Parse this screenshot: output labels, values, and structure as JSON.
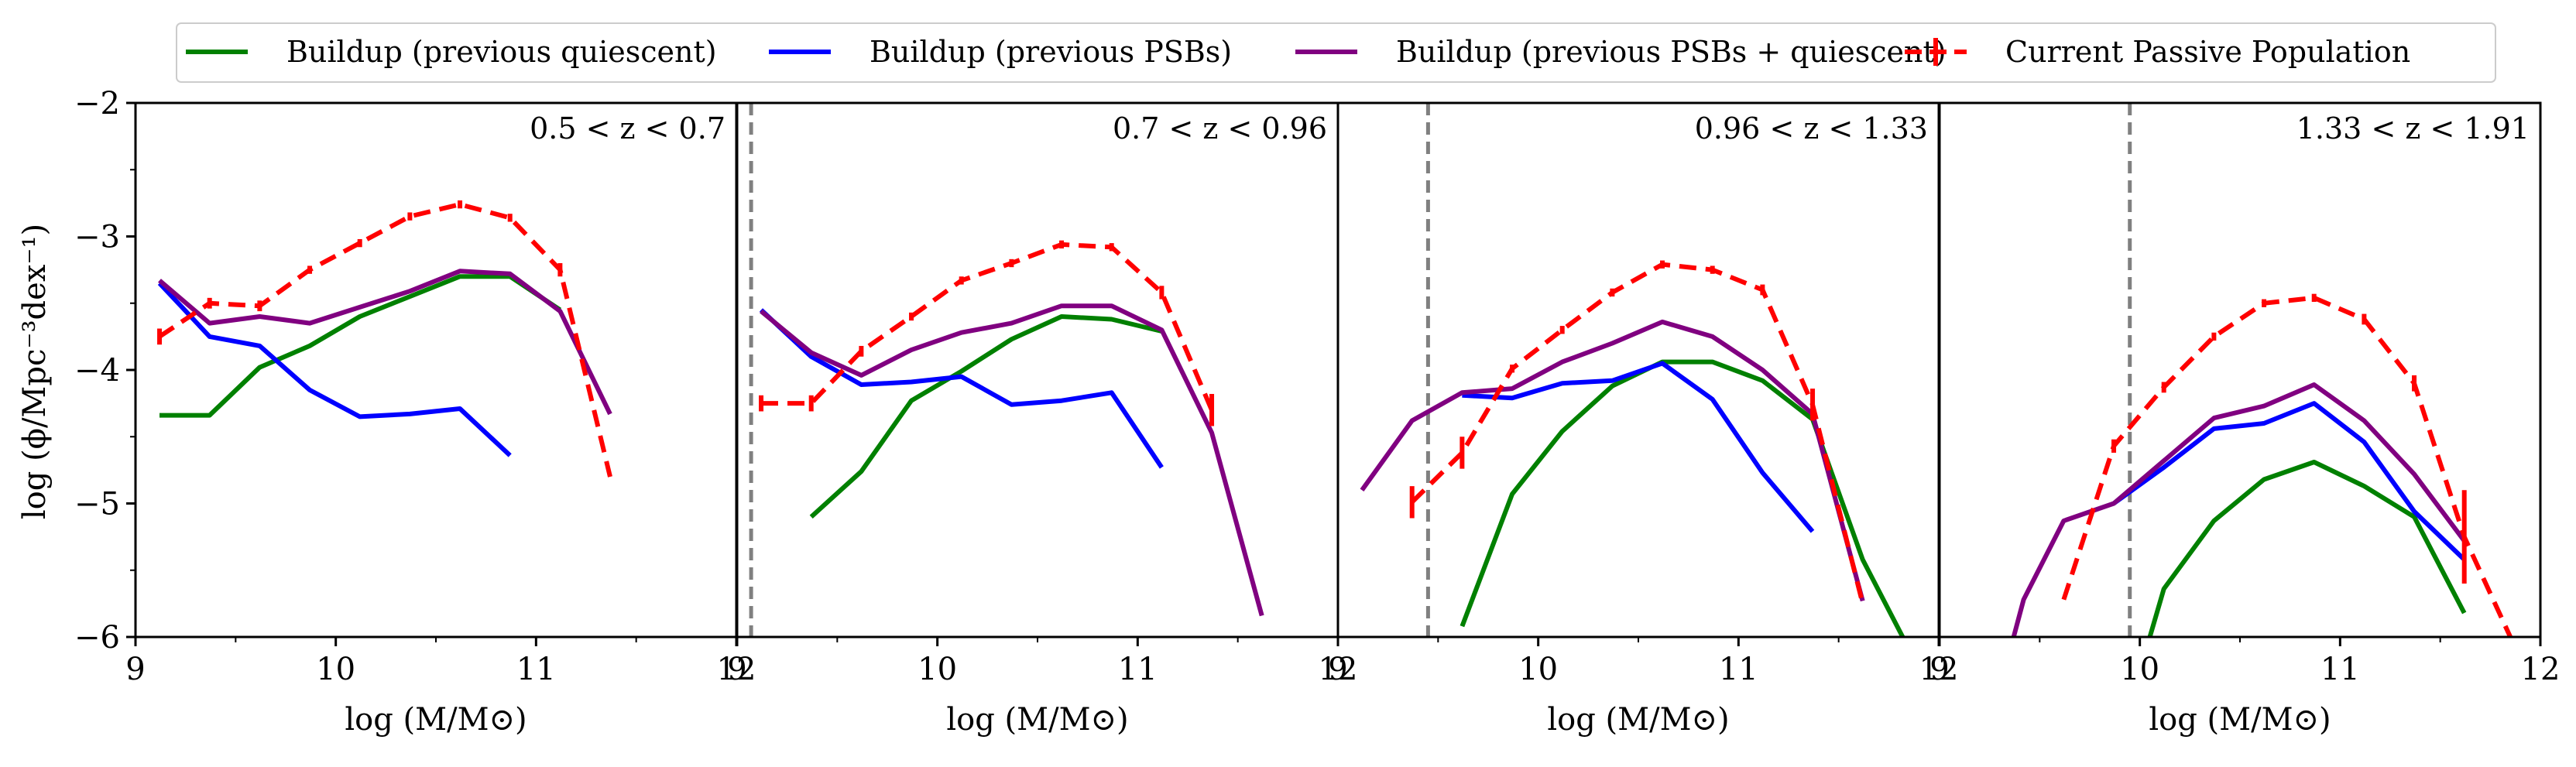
{
  "legend": [
    {
      "key": "quiescent",
      "label": "Buildup (previous quiescent)",
      "color": "#008000",
      "style": "solid"
    },
    {
      "key": "psb",
      "label": "Buildup (previous PSBs)",
      "color": "#0000ff",
      "style": "solid"
    },
    {
      "key": "combined",
      "label": "Buildup (previous PSBs + quiescent)",
      "color": "#800080",
      "style": "solid"
    },
    {
      "key": "passive",
      "label": "Current Passive Population",
      "color": "#ff0000",
      "style": "dashed-errorbar"
    }
  ],
  "y_axis": {
    "label": "log (ϕ/Mpc⁻³dex⁻¹)",
    "ticks": [
      -2,
      -3,
      -4,
      -5,
      -6
    ],
    "tick_labels": [
      "−2",
      "−3",
      "−4",
      "−5",
      "−6"
    ]
  },
  "x_axis": {
    "label": "log (M/M⊙)",
    "ticks": [
      9,
      10,
      11,
      12
    ],
    "tick_labels": [
      "9",
      "10",
      "11",
      "12"
    ]
  },
  "chart_data": [
    {
      "type": "line",
      "title": "0.5 < z < 0.7",
      "xlim": [
        9,
        12
      ],
      "ylim": [
        -6,
        -2
      ],
      "completeness_limit": null,
      "series": [
        {
          "name": "Buildup (previous quiescent)",
          "x": [
            9.12,
            9.37,
            9.62,
            9.87,
            10.12,
            10.37,
            10.62,
            10.87,
            11.12
          ],
          "y": [
            -4.34,
            -4.34,
            -3.98,
            -3.82,
            -3.6,
            -3.45,
            -3.3,
            -3.3,
            -3.55
          ]
        },
        {
          "name": "Buildup (previous PSBs)",
          "x": [
            9.12,
            9.37,
            9.62,
            9.87,
            10.12,
            10.37,
            10.62,
            10.87
          ],
          "y": [
            -3.35,
            -3.75,
            -3.82,
            -4.15,
            -4.35,
            -4.33,
            -4.29,
            -4.64
          ]
        },
        {
          "name": "Buildup (previous PSBs + quiescent)",
          "x": [
            9.12,
            9.37,
            9.62,
            9.87,
            10.12,
            10.37,
            10.62,
            10.87,
            11.12,
            11.37
          ],
          "y": [
            -3.33,
            -3.65,
            -3.6,
            -3.65,
            -3.53,
            -3.41,
            -3.26,
            -3.28,
            -3.56,
            -4.33
          ]
        },
        {
          "name": "Current Passive Population",
          "x": [
            9.12,
            9.37,
            9.62,
            9.87,
            10.12,
            10.37,
            10.62,
            10.87,
            11.12,
            11.37
          ],
          "y": [
            -3.75,
            -3.5,
            -3.52,
            -3.25,
            -3.05,
            -2.85,
            -2.76,
            -2.86,
            -3.25,
            -4.8
          ],
          "err": [
            0.06,
            0.04,
            0.04,
            0.03,
            0.03,
            0.03,
            0.03,
            0.03,
            0.05,
            0.0
          ]
        }
      ]
    },
    {
      "type": "line",
      "title": "0.7 < z < 0.96",
      "xlim": [
        9,
        12
      ],
      "ylim": [
        -6,
        -2
      ],
      "completeness_limit": 9.07,
      "series": [
        {
          "name": "Buildup (previous quiescent)",
          "x": [
            9.37,
            9.62,
            9.87,
            10.12,
            10.37,
            10.62,
            10.87,
            11.12
          ],
          "y": [
            -5.1,
            -4.76,
            -4.23,
            -4.01,
            -3.77,
            -3.6,
            -3.62,
            -3.71
          ]
        },
        {
          "name": "Buildup (previous PSBs)",
          "x": [
            9.12,
            9.37,
            9.62,
            9.87,
            10.12,
            10.37,
            10.62,
            10.87,
            11.12
          ],
          "y": [
            -3.55,
            -3.9,
            -4.11,
            -4.09,
            -4.05,
            -4.26,
            -4.23,
            -4.17,
            -4.73
          ]
        },
        {
          "name": "Buildup (previous PSBs + quiescent)",
          "x": [
            9.12,
            9.37,
            9.62,
            9.87,
            10.12,
            10.37,
            10.62,
            10.87,
            11.12,
            11.37,
            11.62
          ],
          "y": [
            -3.56,
            -3.87,
            -4.04,
            -3.85,
            -3.72,
            -3.65,
            -3.52,
            -3.52,
            -3.7,
            -4.47,
            -5.84
          ]
        },
        {
          "name": "Current Passive Population",
          "x": [
            9.12,
            9.37,
            9.62,
            9.87,
            10.12,
            10.37,
            10.62,
            10.87,
            11.12,
            11.37
          ],
          "y": [
            -4.25,
            -4.25,
            -3.86,
            -3.6,
            -3.33,
            -3.2,
            -3.06,
            -3.08,
            -3.42,
            -4.3
          ],
          "err": [
            0.06,
            0.06,
            0.04,
            0.03,
            0.03,
            0.03,
            0.03,
            0.03,
            0.05,
            0.12
          ]
        }
      ]
    },
    {
      "type": "line",
      "title": "0.96 < z < 1.33",
      "xlim": [
        9,
        12
      ],
      "ylim": [
        -6,
        -2
      ],
      "completeness_limit": 9.45,
      "series": [
        {
          "name": "Buildup (previous quiescent)",
          "x": [
            9.62,
            9.87,
            10.12,
            10.37,
            10.62,
            10.87,
            11.12,
            11.37,
            11.62,
            11.82
          ],
          "y": [
            -5.92,
            -4.93,
            -4.46,
            -4.12,
            -3.94,
            -3.94,
            -4.08,
            -4.37,
            -5.42,
            -6.0
          ]
        },
        {
          "name": "Buildup (previous PSBs)",
          "x": [
            9.62,
            9.87,
            10.12,
            10.37,
            10.62,
            10.87,
            11.12,
            11.37
          ],
          "y": [
            -4.19,
            -4.21,
            -4.1,
            -4.08,
            -3.95,
            -4.22,
            -4.77,
            -5.21
          ]
        },
        {
          "name": "Buildup (previous PSBs + quiescent)",
          "x": [
            9.12,
            9.37,
            9.62,
            9.87,
            10.12,
            10.37,
            10.62,
            10.87,
            11.12,
            11.37,
            11.62
          ],
          "y": [
            -4.9,
            -4.38,
            -4.17,
            -4.14,
            -3.94,
            -3.8,
            -3.64,
            -3.75,
            -4.0,
            -4.33,
            -5.73
          ]
        },
        {
          "name": "Current Passive Population",
          "x": [
            9.37,
            9.62,
            9.87,
            10.12,
            10.37,
            10.62,
            10.87,
            11.12,
            11.37,
            11.62
          ],
          "y": [
            -4.99,
            -4.62,
            -3.99,
            -3.7,
            -3.42,
            -3.21,
            -3.25,
            -3.4,
            -4.26,
            -5.75
          ],
          "err": [
            0.12,
            0.12,
            0.03,
            0.03,
            0.03,
            0.03,
            0.03,
            0.04,
            0.12,
            0.0
          ]
        }
      ]
    },
    {
      "type": "line",
      "title": "1.33 < z < 1.91",
      "xlim": [
        9,
        12
      ],
      "ylim": [
        -6,
        -2
      ],
      "completeness_limit": 9.95,
      "series": [
        {
          "name": "Buildup (previous quiescent)",
          "x": [
            10.05,
            10.12,
            10.37,
            10.62,
            10.87,
            11.12,
            11.37,
            11.62
          ],
          "y": [
            -6.0,
            -5.64,
            -5.13,
            -4.82,
            -4.69,
            -4.87,
            -5.1,
            -5.82
          ]
        },
        {
          "name": "Buildup (previous PSBs)",
          "x": [
            9.87,
            10.12,
            10.37,
            10.62,
            10.87,
            11.12,
            11.37,
            11.62
          ],
          "y": [
            -5.0,
            -4.73,
            -4.44,
            -4.4,
            -4.25,
            -4.54,
            -5.06,
            -5.42
          ]
        },
        {
          "name": "Buildup (previous PSBs + quiescent)",
          "x": [
            9.37,
            9.42,
            9.62,
            9.87,
            10.12,
            10.37,
            10.62,
            10.87,
            11.12,
            11.37,
            11.62
          ],
          "y": [
            -6.0,
            -5.72,
            -5.13,
            -5.0,
            -4.68,
            -4.36,
            -4.27,
            -4.11,
            -4.38,
            -4.78,
            -5.28
          ]
        },
        {
          "name": "Current Passive Population",
          "x": [
            9.62,
            9.87,
            10.12,
            10.37,
            10.62,
            10.87,
            11.12,
            11.37,
            11.62,
            11.85
          ],
          "y": [
            -5.72,
            -4.57,
            -4.13,
            -3.75,
            -3.5,
            -3.46,
            -3.62,
            -4.1,
            -5.25,
            -6.0
          ],
          "err": [
            0.0,
            0.05,
            0.04,
            0.03,
            0.03,
            0.03,
            0.04,
            0.06,
            0.35,
            0.0
          ]
        }
      ]
    }
  ]
}
